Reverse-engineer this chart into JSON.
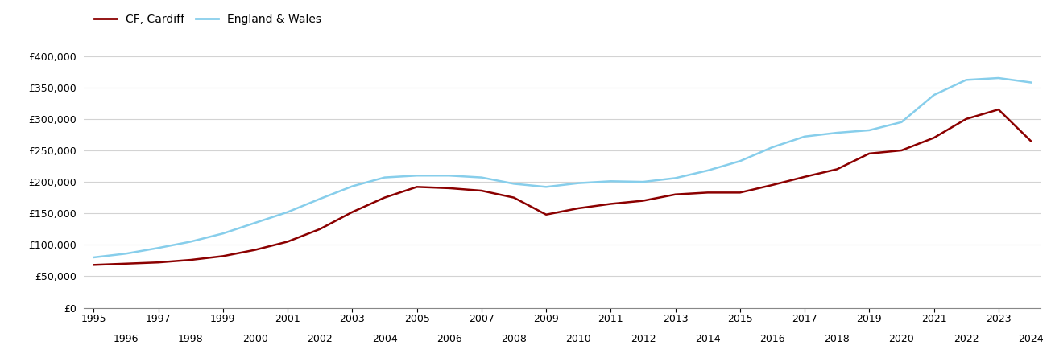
{
  "cf_cardiff_years": [
    1995,
    1996,
    1997,
    1998,
    1999,
    2000,
    2001,
    2002,
    2003,
    2004,
    2005,
    2006,
    2007,
    2008,
    2009,
    2010,
    2011,
    2012,
    2013,
    2014,
    2015,
    2016,
    2017,
    2018,
    2019,
    2020,
    2021,
    2022,
    2023,
    2024
  ],
  "cf_cardiff_values": [
    68000,
    70000,
    72000,
    76000,
    82000,
    92000,
    105000,
    125000,
    152000,
    175000,
    192000,
    190000,
    186000,
    175000,
    148000,
    158000,
    165000,
    170000,
    180000,
    183000,
    183000,
    195000,
    208000,
    220000,
    245000,
    250000,
    270000,
    300000,
    315000,
    265000
  ],
  "ew_years": [
    1995,
    1996,
    1997,
    1998,
    1999,
    2000,
    2001,
    2002,
    2003,
    2004,
    2005,
    2006,
    2007,
    2008,
    2009,
    2010,
    2011,
    2012,
    2013,
    2014,
    2015,
    2016,
    2017,
    2018,
    2019,
    2020,
    2021,
    2022,
    2023,
    2024
  ],
  "ew_values": [
    80000,
    86000,
    95000,
    105000,
    118000,
    135000,
    152000,
    173000,
    193000,
    207000,
    210000,
    210000,
    207000,
    197000,
    192000,
    198000,
    201000,
    200000,
    206000,
    218000,
    233000,
    255000,
    272000,
    278000,
    282000,
    295000,
    338000,
    362000,
    365000,
    358000
  ],
  "cf_cardiff_color": "#8b0000",
  "ew_color": "#87ceeb",
  "cf_cardiff_label": "CF, Cardiff",
  "ew_label": "England & Wales",
  "ylim": [
    0,
    420000
  ],
  "yticks": [
    0,
    50000,
    100000,
    150000,
    200000,
    250000,
    300000,
    350000,
    400000
  ],
  "xticks_odd": [
    1995,
    1997,
    1999,
    2001,
    2003,
    2005,
    2007,
    2009,
    2011,
    2013,
    2015,
    2017,
    2019,
    2021,
    2023
  ],
  "xticks_even": [
    1996,
    1998,
    2000,
    2002,
    2004,
    2006,
    2008,
    2010,
    2012,
    2014,
    2016,
    2018,
    2020,
    2022,
    2024
  ],
  "background_color": "#ffffff",
  "grid_color": "#d3d3d3",
  "line_width": 1.8,
  "xlim_left": 1994.7,
  "xlim_right": 2024.3
}
